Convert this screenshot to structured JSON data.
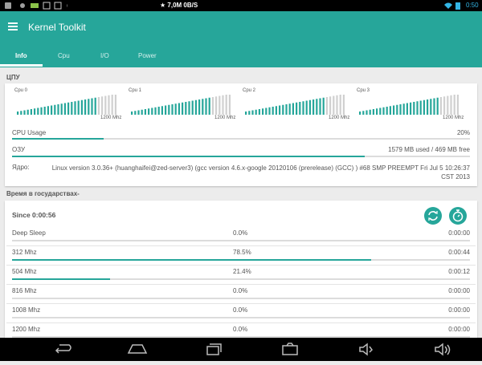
{
  "status_bar": {
    "network": "★ 7,0M  0B/S",
    "time": "0:50"
  },
  "app_bar": {
    "title": "Kernel Toolkit",
    "tabs": [
      "Info",
      "Cpu",
      "I/O",
      "Power"
    ]
  },
  "cpu_section": {
    "title": "ЦПУ",
    "graphs": [
      {
        "label": "Cpu 0",
        "freq": "1200 Mhz"
      },
      {
        "label": "Cpu 1",
        "freq": "1200 Mhz"
      },
      {
        "label": "Cpu 2",
        "freq": "1200 Mhz"
      },
      {
        "label": "Cpu 3",
        "freq": "1200 Mhz"
      }
    ],
    "cpu_usage": {
      "label": "CPU Usage",
      "value": {
        "value": 20,
        "label": "20%"
      }
    },
    "ram": {
      "label": "ОЗУ",
      "used": 1579,
      "free": 469,
      "text": "1579 MB used / 469 MB free"
    },
    "kernel": {
      "label": "Ядро:",
      "text": "Linux version 3.0.36+ (huanghaifei@zed-server3) (gcc version 4.6.x-google 20120106 (prerelease) (GCC) ) #68 SMP PREEMPT Fri Jul 5 10:26:37 CST 2013"
    }
  },
  "states_section": {
    "title": "Время в государствах-",
    "since": "Since 0:00:56",
    "rows": [
      {
        "freq": "Deep Sleep",
        "percent": {
          "value": 0,
          "label": "0.0%"
        },
        "time": "0:00:00"
      },
      {
        "freq": "312 Mhz",
        "percent": {
          "value": 78.5,
          "label": "78.5%"
        },
        "time": "0:00:44"
      },
      {
        "freq": "504 Mhz",
        "percent": {
          "value": 21.4,
          "label": "21.4%"
        },
        "time": "0:00:12"
      },
      {
        "freq": "816 Mhz",
        "percent": {
          "value": 0,
          "label": "0.0%"
        },
        "time": "0:00:00"
      },
      {
        "freq": "1008 Mhz",
        "percent": {
          "value": 0,
          "label": "0.0%"
        },
        "time": "0:00:00"
      },
      {
        "freq": "1200 Mhz",
        "percent": {
          "value": 0,
          "label": "0.0%"
        },
        "time": "0:00:00"
      }
    ]
  }
}
